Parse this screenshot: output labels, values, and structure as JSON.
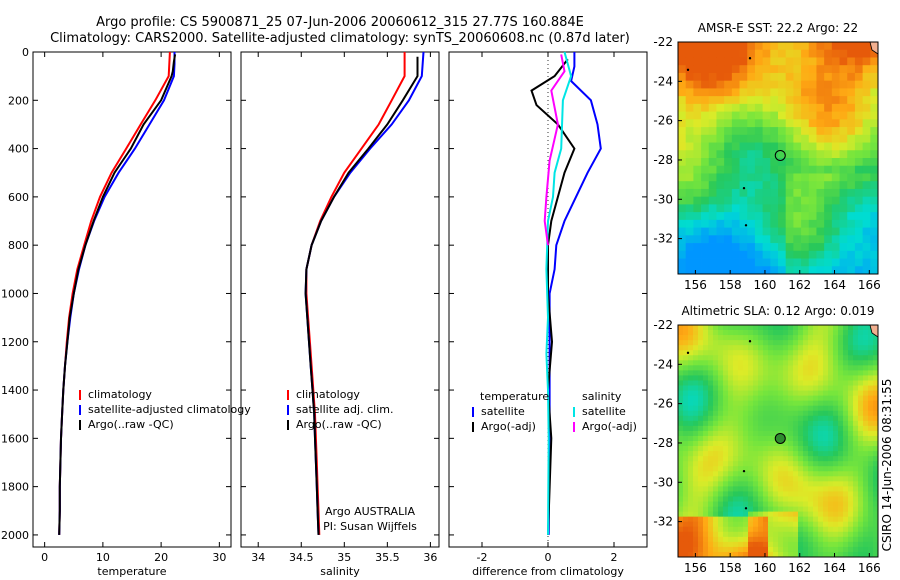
{
  "header": {
    "line1": "Argo profile: CS 5900871_25 07-Jun-2006 20060612_315 27.77S 160.884E",
    "line2": "Climatology: CARS2000. Satellite-adjusted climatology: synTS_20060608.nc (0.87d later)"
  },
  "credit": {
    "line1": "Argo AUSTRALIA",
    "line2": "PI: Susan Wijffels"
  },
  "stamp": "CSIRO 14-Jun-2006 08:31:55",
  "colors": {
    "climatology": "#ff0000",
    "satellite": "#0000ff",
    "argo": "#000000",
    "satellite_diff": "#00e5e5",
    "argo_diff": "#ff00ff"
  },
  "chart_data": [
    {
      "type": "line",
      "title": "",
      "xlabel": "temperature",
      "ylabel": "",
      "xlim": [
        -2,
        32
      ],
      "ylim": [
        2050,
        0
      ],
      "y_reversed": true,
      "xticks": [
        "0",
        "10",
        "20",
        "30"
      ],
      "yticks": [
        "0",
        "200",
        "400",
        "600",
        "800",
        "1000",
        "1200",
        "1400",
        "1600",
        "1800",
        "2000"
      ],
      "legend": [
        "climatology",
        "satellite-adjusted climatology",
        "Argo(..raw -QC)"
      ],
      "legend_position": "lower-right",
      "series": [
        {
          "name": "climatology",
          "color": "#ff0000",
          "points": [
            [
              21.5,
              0
            ],
            [
              21.4,
              50
            ],
            [
              21.3,
              100
            ],
            [
              19,
              200
            ],
            [
              16.5,
              300
            ],
            [
              14,
              400
            ],
            [
              11.5,
              500
            ],
            [
              9.5,
              600
            ],
            [
              8,
              700
            ],
            [
              6.8,
              800
            ],
            [
              5.6,
              900
            ],
            [
              4.8,
              1000
            ],
            [
              4.2,
              1100
            ],
            [
              3.8,
              1200
            ],
            [
              3.5,
              1300
            ],
            [
              3.2,
              1400
            ],
            [
              3,
              1500
            ],
            [
              2.8,
              1600
            ],
            [
              2.7,
              1700
            ],
            [
              2.6,
              1800
            ],
            [
              2.6,
              1900
            ],
            [
              2.5,
              2000
            ]
          ]
        },
        {
          "name": "satellite-adjusted climatology",
          "color": "#0000ff",
          "points": [
            [
              22.3,
              0
            ],
            [
              22.3,
              50
            ],
            [
              22.2,
              100
            ],
            [
              20.5,
              200
            ],
            [
              18,
              300
            ],
            [
              15.5,
              400
            ],
            [
              12.7,
              500
            ],
            [
              10.3,
              600
            ],
            [
              8.5,
              700
            ],
            [
              7,
              800
            ],
            [
              5.9,
              900
            ],
            [
              5,
              1000
            ],
            [
              4.4,
              1100
            ],
            [
              3.9,
              1200
            ],
            [
              3.5,
              1300
            ],
            [
              3.2,
              1400
            ],
            [
              3,
              1500
            ],
            [
              2.8,
              1600
            ],
            [
              2.7,
              1700
            ],
            [
              2.6,
              1800
            ],
            [
              2.6,
              1900
            ],
            [
              2.5,
              2000
            ]
          ]
        },
        {
          "name": "Argo(..raw -QC)",
          "color": "#000000",
          "points": [
            [
              22.4,
              10
            ],
            [
              22.2,
              40
            ],
            [
              22,
              80
            ],
            [
              21.8,
              100
            ],
            [
              20,
              200
            ],
            [
              17,
              300
            ],
            [
              14.8,
              400
            ],
            [
              12,
              500
            ],
            [
              10,
              600
            ],
            [
              8.4,
              700
            ],
            [
              7,
              800
            ],
            [
              5.8,
              900
            ],
            [
              5,
              1000
            ],
            [
              4.3,
              1100
            ],
            [
              3.9,
              1200
            ],
            [
              3.5,
              1300
            ],
            [
              3.2,
              1400
            ],
            [
              3,
              1500
            ],
            [
              2.8,
              1600
            ],
            [
              2.7,
              1700
            ],
            [
              2.6,
              1800
            ],
            [
              2.6,
              1900
            ],
            [
              2.5,
              2000
            ]
          ]
        }
      ]
    },
    {
      "type": "line",
      "title": "",
      "xlabel": "salinity",
      "ylabel": "",
      "xlim": [
        33.8,
        36.1
      ],
      "ylim": [
        2050,
        0
      ],
      "y_reversed": true,
      "xticks": [
        "34",
        "34.5",
        "35",
        "35.5",
        "36"
      ],
      "legend": [
        "climatology",
        "satellite adj. clim.",
        "Argo(..raw -QC)"
      ],
      "legend_position": "lower-right",
      "series": [
        {
          "name": "climatology",
          "color": "#ff0000",
          "points": [
            [
              35.7,
              0
            ],
            [
              35.7,
              100
            ],
            [
              35.55,
              200
            ],
            [
              35.4,
              300
            ],
            [
              35.2,
              400
            ],
            [
              35,
              500
            ],
            [
              34.85,
              600
            ],
            [
              34.72,
              700
            ],
            [
              34.62,
              800
            ],
            [
              34.56,
              900
            ],
            [
              34.56,
              1000
            ],
            [
              34.58,
              1100
            ],
            [
              34.6,
              1200
            ],
            [
              34.62,
              1300
            ],
            [
              34.64,
              1400
            ],
            [
              34.66,
              1500
            ],
            [
              34.67,
              1600
            ],
            [
              34.68,
              1700
            ],
            [
              34.69,
              1800
            ],
            [
              34.7,
              1900
            ],
            [
              34.71,
              2000
            ]
          ]
        },
        {
          "name": "satellite adj. clim.",
          "color": "#0000ff",
          "points": [
            [
              35.92,
              0
            ],
            [
              35.9,
              100
            ],
            [
              35.75,
              200
            ],
            [
              35.55,
              300
            ],
            [
              35.3,
              400
            ],
            [
              35.07,
              500
            ],
            [
              34.88,
              600
            ],
            [
              34.73,
              700
            ],
            [
              34.62,
              800
            ],
            [
              34.56,
              900
            ],
            [
              34.55,
              1000
            ],
            [
              34.57,
              1100
            ],
            [
              34.59,
              1200
            ],
            [
              34.61,
              1300
            ],
            [
              34.63,
              1400
            ],
            [
              34.65,
              1500
            ],
            [
              34.66,
              1600
            ],
            [
              34.67,
              1700
            ],
            [
              34.68,
              1800
            ],
            [
              34.69,
              1900
            ],
            [
              34.7,
              2000
            ]
          ]
        },
        {
          "name": "Argo(..raw -QC)",
          "color": "#000000",
          "points": [
            [
              35.85,
              20
            ],
            [
              35.85,
              100
            ],
            [
              35.68,
              200
            ],
            [
              35.5,
              300
            ],
            [
              35.28,
              400
            ],
            [
              35.05,
              500
            ],
            [
              34.88,
              600
            ],
            [
              34.73,
              700
            ],
            [
              34.62,
              800
            ],
            [
              34.56,
              900
            ],
            [
              34.55,
              1000
            ],
            [
              34.57,
              1100
            ],
            [
              34.59,
              1200
            ],
            [
              34.61,
              1300
            ],
            [
              34.63,
              1400
            ],
            [
              34.65,
              1500
            ],
            [
              34.66,
              1600
            ],
            [
              34.67,
              1700
            ],
            [
              34.68,
              1800
            ],
            [
              34.69,
              1900
            ],
            [
              34.7,
              2000
            ]
          ]
        }
      ]
    },
    {
      "type": "line",
      "title": "",
      "xlabel": "difference from climatology",
      "ylabel": "",
      "xlim": [
        -3,
        3
      ],
      "ylim": [
        2050,
        0
      ],
      "y_reversed": true,
      "xticks": [
        "-2",
        "0",
        "2"
      ],
      "legend_groups": [
        {
          "heading": "temperature",
          "items": [
            "satellite",
            "Argo(-adj)"
          ]
        },
        {
          "heading": "salinity",
          "items": [
            "satellite",
            "Argo(-adj)"
          ]
        }
      ],
      "series": [
        {
          "name": "temperature satellite",
          "color": "#0000ff",
          "points": [
            [
              0.8,
              0
            ],
            [
              0.8,
              60
            ],
            [
              0.7,
              120
            ],
            [
              1.3,
              200
            ],
            [
              1.5,
              300
            ],
            [
              1.6,
              400
            ],
            [
              1.2,
              500
            ],
            [
              0.85,
              600
            ],
            [
              0.5,
              700
            ],
            [
              0.25,
              800
            ],
            [
              0.2,
              900
            ],
            [
              0.05,
              1000
            ],
            [
              0.05,
              1500
            ],
            [
              0.02,
              2000
            ]
          ]
        },
        {
          "name": "temperature Argo(-adj)",
          "color": "#000000",
          "points": [
            [
              0.6,
              30
            ],
            [
              0.2,
              100
            ],
            [
              -0.5,
              160
            ],
            [
              -0.35,
              220
            ],
            [
              0.3,
              300
            ],
            [
              0.8,
              400
            ],
            [
              0.5,
              500
            ],
            [
              0.3,
              600
            ],
            [
              0.1,
              700
            ],
            [
              0,
              800
            ],
            [
              0,
              1000
            ],
            [
              0.12,
              1200
            ],
            [
              0,
              1400
            ],
            [
              0.1,
              1600
            ],
            [
              0,
              2000
            ]
          ]
        },
        {
          "name": "salinity satellite",
          "color": "#00e5e5",
          "points": [
            [
              0.5,
              0
            ],
            [
              0.7,
              100
            ],
            [
              0.45,
              200
            ],
            [
              0.4,
              400
            ],
            [
              0.2,
              500
            ],
            [
              0.15,
              600
            ],
            [
              0,
              700
            ],
            [
              -0.05,
              900
            ],
            [
              0,
              1100
            ],
            [
              -0.05,
              1250
            ],
            [
              0,
              1400
            ],
            [
              0.02,
              1600
            ],
            [
              0,
              2000
            ]
          ]
        },
        {
          "name": "salinity Argo(-adj)",
          "color": "#ff00ff",
          "points": [
            [
              0.4,
              10
            ],
            [
              0.5,
              80
            ],
            [
              0.1,
              160
            ],
            [
              0.3,
              300
            ],
            [
              0.05,
              450
            ],
            [
              -0.05,
              600
            ],
            [
              -0.1,
              700
            ],
            [
              0.0,
              800
            ]
          ]
        }
      ]
    }
  ],
  "maps": [
    {
      "title": "AMSR-E SST: 22.2 Argo: 22",
      "xlim": [
        155,
        166.5
      ],
      "ylim": [
        -33.8,
        -22
      ],
      "xticks": [
        "156",
        "158",
        "160",
        "162",
        "164",
        "166"
      ],
      "yticks": [
        "-22",
        "-24",
        "-26",
        "-28",
        "-30",
        "-32"
      ],
      "float_position": [
        160.88,
        -27.77
      ],
      "colormap": "SST",
      "style": "blocky"
    },
    {
      "title": "Altimetric SLA: 0.12 Argo: 0.019",
      "xlim": [
        155,
        166.5
      ],
      "ylim": [
        -33.8,
        -22
      ],
      "xticks": [
        "156",
        "158",
        "160",
        "162",
        "164",
        "166"
      ],
      "yticks": [
        "-22",
        "-24",
        "-26",
        "-28",
        "-30",
        "-32"
      ],
      "float_position": [
        160.88,
        -27.77
      ],
      "colormap": "SLA",
      "style": "smooth"
    }
  ]
}
